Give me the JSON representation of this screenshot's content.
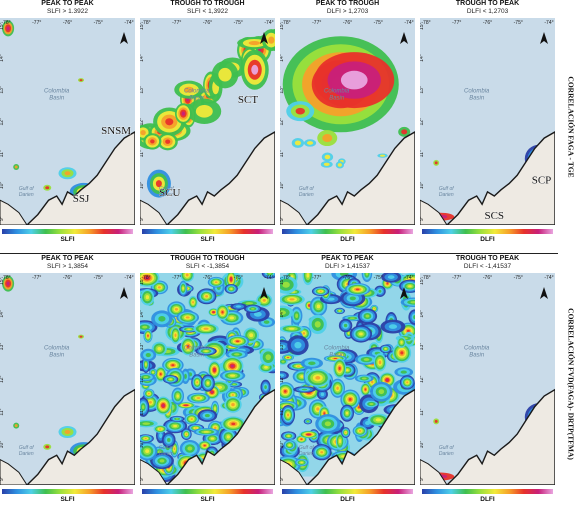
{
  "rows": [
    {
      "side_label": "CORRELACIÓN FAGA - TGE",
      "panels": [
        {
          "title": "PEAK TO PEAK",
          "subtitle": "SLFI > 1.3922",
          "colorbar_label": "SLFI",
          "pattern": "sparse_hot"
        },
        {
          "title": "TROUGH TO TROUGH",
          "subtitle": "SLFI < 1,3922",
          "colorbar_label": "SLFI",
          "pattern": "band"
        },
        {
          "title": "PEAK TO TROUGH",
          "subtitle": "DLFI > 1,2703",
          "colorbar_label": "DLFI",
          "pattern": "blob"
        },
        {
          "title": "TROUGH TO PEAK",
          "subtitle": "DLFI < 1,2703",
          "colorbar_label": "DLFI",
          "pattern": "sparse_cool"
        }
      ]
    },
    {
      "side_label": "CORRELACIÓN FVD(FAGA)- DRTP(TFMA)",
      "panels": [
        {
          "title": "PEAK TO PEAK",
          "subtitle": "SLFI > 1,3854",
          "colorbar_label": "SLFI",
          "pattern": "sparse_hot"
        },
        {
          "title": "TROUGH TO TROUGH",
          "subtitle": "SLFI < -1,3854",
          "colorbar_label": "SLFI",
          "pattern": "dense"
        },
        {
          "title": "PEAK TO PEAK",
          "subtitle": "DLFI > 1,41537",
          "colorbar_label": "DLFI",
          "pattern": "dense"
        },
        {
          "title": "TROUGH TO PEAK",
          "subtitle": "DLFI < -1,41537",
          "colorbar_label": "DLFI",
          "pattern": "sparse_cool"
        }
      ]
    }
  ],
  "map_labels": {
    "basin_line1": "Colombia",
    "basin_line2": "Basin",
    "gulf_line1": "Gulf of",
    "gulf_line2": "Darien"
  },
  "lon_ticks": [
    "-78°",
    "-77°",
    "-76°",
    "-75°",
    "-74°"
  ],
  "lat_ticks": [
    "15°",
    "14°",
    "13°",
    "12°",
    "11°",
    "10°",
    "9°"
  ],
  "feature_labels": [
    {
      "text": "SNSM",
      "row": 0,
      "panel": 0
    },
    {
      "text": "SSJ",
      "row": 0,
      "panel": 0
    },
    {
      "text": "SCU",
      "row": 0,
      "panel": 1
    },
    {
      "text": "SCT",
      "row": 0,
      "panel": 1
    },
    {
      "text": "SCP",
      "row": 0,
      "panel": 3
    },
    {
      "text": "SCS",
      "row": 0,
      "panel": 3
    }
  ],
  "colors": {
    "sea": "#c9dbe9",
    "land": "#eeeae3",
    "coast": "#1a1a1a",
    "colorbar_stops": [
      "#2a3fa8",
      "#2f8fe0",
      "#4fd0e8",
      "#3fbf4f",
      "#9be03c",
      "#f2e93a",
      "#f6a02a",
      "#e8322a",
      "#c8207a",
      "#e9a5e0"
    ]
  },
  "north_arrow": "north-arrow-icon"
}
